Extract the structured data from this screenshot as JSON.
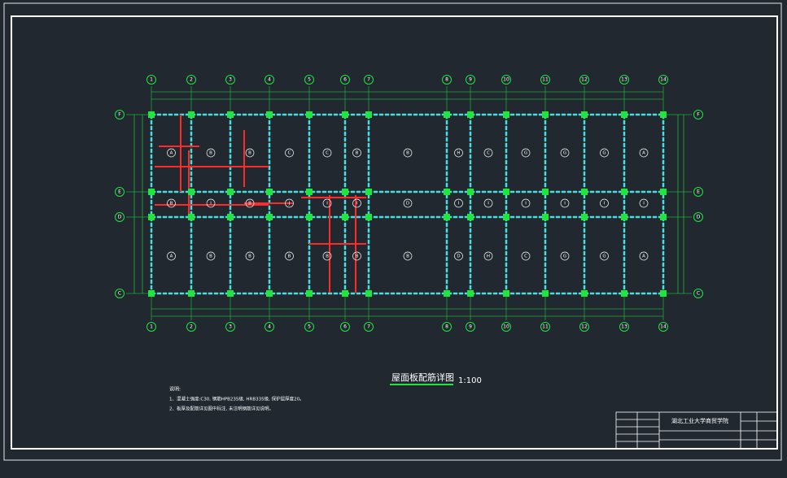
{
  "grid": {
    "columns": [
      "1",
      "2",
      "3",
      "4",
      "5",
      "6",
      "7",
      "8",
      "9",
      "10",
      "11",
      "12",
      "13",
      "14"
    ],
    "rows": [
      "F",
      "E",
      "D",
      "C"
    ]
  },
  "slab_rows": [
    [
      "A",
      "B",
      "B",
      "C",
      "C",
      "B",
      "B",
      "H",
      "C",
      "G",
      "G",
      "G",
      "A"
    ],
    [
      "B",
      "I",
      "B",
      "J",
      "I",
      "I",
      "D",
      "I",
      "I",
      "I",
      "I",
      "I",
      "I"
    ],
    [
      "A",
      "B",
      "B",
      "B",
      "B",
      "B",
      "B",
      "D",
      "H",
      "C",
      "G",
      "G",
      "A"
    ]
  ],
  "drawing": {
    "title": "屋面板配筋详图",
    "scale": "1:100"
  },
  "notes": {
    "heading": "说明:",
    "lines": [
      "1、混凝土强度:C30, 钢筋HPB235级, HRB335级, 保护层厚度20。",
      "2、板厚及配筋详见图中标注, 未注明钢筋详见说明。"
    ]
  },
  "title_block": {
    "school": "湖北工业大学商贸学院"
  }
}
